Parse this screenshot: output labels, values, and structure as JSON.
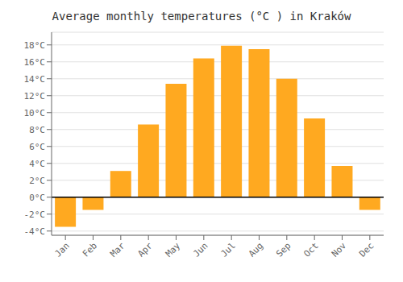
{
  "chart_data": {
    "type": "bar",
    "title": "Average monthly temperatures (°C ) in Kraków",
    "categories": [
      "Jan",
      "Feb",
      "Mar",
      "Apr",
      "May",
      "Jun",
      "Jul",
      "Aug",
      "Sep",
      "Oct",
      "Nov",
      "Dec"
    ],
    "values": [
      -3.5,
      -1.5,
      3.1,
      8.6,
      13.4,
      16.4,
      17.9,
      17.5,
      14.0,
      9.3,
      3.7,
      -1.5
    ],
    "color": "#FFA920",
    "ylim": [
      -4.5,
      19.5
    ],
    "yticks": [
      {
        "value": -4,
        "label": "-4°C"
      },
      {
        "value": -2,
        "label": "-2°C"
      },
      {
        "value": 0,
        "label": "0°C"
      },
      {
        "value": 2,
        "label": "2°C"
      },
      {
        "value": 4,
        "label": "4°C"
      },
      {
        "value": 6,
        "label": "6°C"
      },
      {
        "value": 8,
        "label": "8°C"
      },
      {
        "value": 10,
        "label": "10°C"
      },
      {
        "value": 12,
        "label": "12°C"
      },
      {
        "value": 14,
        "label": "14°C"
      },
      {
        "value": 16,
        "label": "16°C"
      },
      {
        "value": 18,
        "label": "18°C"
      }
    ],
    "grid": true
  }
}
